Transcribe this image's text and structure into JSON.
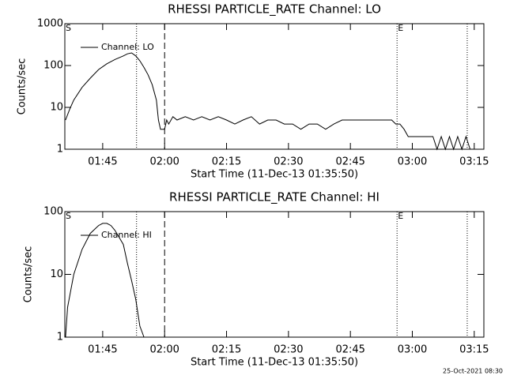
{
  "chart_data": [
    {
      "type": "line",
      "title": "RHESSI PARTICLE_RATE Channel: LO",
      "ylabel": "Counts/sec",
      "xlabel": "Start Time (11-Dec-13 01:35:50)",
      "log_y": true,
      "ylim": [
        1,
        1000
      ],
      "yticks": [
        1,
        10,
        100,
        1000
      ],
      "xlim": [
        95.83,
        197.33
      ],
      "xticks": [
        {
          "value": 105,
          "label": "01:45"
        },
        {
          "value": 120,
          "label": "02:00"
        },
        {
          "value": 135,
          "label": "02:15"
        },
        {
          "value": 150,
          "label": "02:30"
        },
        {
          "value": 165,
          "label": "02:45"
        },
        {
          "value": 180,
          "label": "03:00"
        },
        {
          "value": 195,
          "label": "03:15"
        }
      ],
      "series": [
        {
          "name": "Channel: LO",
          "color": "#000000",
          "x": [
            96,
            97,
            98,
            100,
            102,
            104,
            106,
            108,
            110,
            111,
            112,
            113,
            114,
            115,
            116,
            117,
            118,
            118.5,
            119,
            120,
            120.5,
            121,
            122,
            123,
            125,
            127,
            129,
            131,
            133,
            135,
            137,
            139,
            141,
            143,
            145,
            147,
            149,
            151,
            153,
            155,
            157,
            159,
            161,
            163,
            165,
            167,
            169,
            171,
            173,
            175,
            176,
            177,
            178,
            179,
            181,
            183,
            185,
            186,
            187,
            188,
            189,
            190,
            191,
            192,
            193,
            194
          ],
          "values": [
            5,
            9,
            15,
            30,
            50,
            80,
            110,
            140,
            170,
            190,
            200,
            170,
            130,
            90,
            60,
            35,
            15,
            5,
            3,
            3,
            5,
            4,
            6,
            5,
            6,
            5,
            6,
            5,
            6,
            5,
            4,
            5,
            6,
            4,
            5,
            5,
            4,
            4,
            3,
            4,
            4,
            3,
            4,
            5,
            5,
            5,
            5,
            5,
            5,
            5,
            4,
            4,
            3,
            2,
            2,
            2,
            2,
            1,
            2,
            1,
            2,
            1,
            2,
            1,
            2,
            1
          ]
        }
      ],
      "markers": [
        {
          "x": 113.2,
          "style": "dotted"
        },
        {
          "x": 120,
          "style": "dashed"
        },
        {
          "x": 176.3,
          "style": "dotted"
        },
        {
          "x": 193.3,
          "style": "dotted"
        }
      ],
      "annotations": [
        {
          "text": "S",
          "x": 95.83
        },
        {
          "text": "E",
          "x": 176.3
        }
      ]
    },
    {
      "type": "line",
      "title": "RHESSI PARTICLE_RATE Channel: HI",
      "ylabel": "Counts/sec",
      "xlabel": "Start Time (11-Dec-13 01:35:50)",
      "log_y": true,
      "ylim": [
        1,
        100
      ],
      "yticks": [
        1,
        10,
        100
      ],
      "xlim": [
        95.83,
        197.33
      ],
      "xticks": [
        {
          "value": 105,
          "label": "01:45"
        },
        {
          "value": 120,
          "label": "02:00"
        },
        {
          "value": 135,
          "label": "02:15"
        },
        {
          "value": 150,
          "label": "02:30"
        },
        {
          "value": 165,
          "label": "02:45"
        },
        {
          "value": 180,
          "label": "03:00"
        },
        {
          "value": 195,
          "label": "03:15"
        }
      ],
      "series": [
        {
          "name": "Channel: HI",
          "color": "#000000",
          "x": [
            96,
            96.5,
            98,
            100,
            102,
            104,
            105,
            106,
            107,
            108,
            110,
            111,
            112,
            113,
            114,
            115
          ],
          "values": [
            1,
            3,
            10,
            25,
            45,
            60,
            65,
            65,
            60,
            50,
            30,
            15,
            8,
            4,
            1.5,
            1
          ]
        }
      ],
      "markers": [
        {
          "x": 113.2,
          "style": "dotted"
        },
        {
          "x": 120,
          "style": "dashed"
        },
        {
          "x": 176.3,
          "style": "dotted"
        },
        {
          "x": 193.3,
          "style": "dotted"
        }
      ],
      "annotations": [
        {
          "text": "S",
          "x": 95.83
        },
        {
          "text": "E",
          "x": 176.3
        }
      ]
    }
  ],
  "footer": "25-Oct-2021 08:30"
}
